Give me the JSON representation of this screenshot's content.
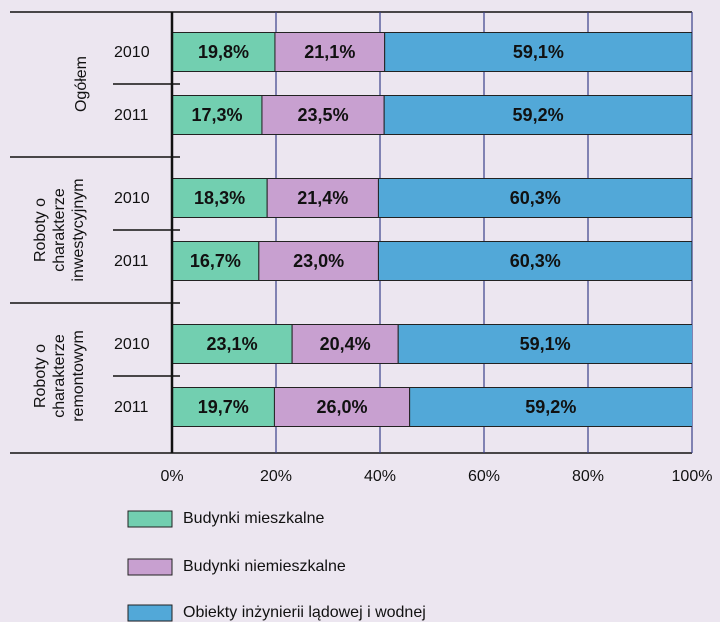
{
  "chart_data": {
    "type": "stacked-bar-horizontal",
    "groups": [
      "Ogółem",
      "Roboty o\ncharakterze\ninwestycyjnym",
      "Roboty o\ncharakterze\nremontowym"
    ],
    "categories": [
      "2010",
      "2011",
      "2010",
      "2011",
      "2010",
      "2011"
    ],
    "series": [
      {
        "name": "Budynki mieszkalne",
        "color": "#72cfb0",
        "values": [
          19.8,
          17.3,
          18.3,
          16.7,
          23.1,
          19.7
        ],
        "value_labels": [
          "19,8%",
          "17,3%",
          "18,3%",
          "16,7%",
          "23,1%",
          "19,7%"
        ]
      },
      {
        "name": "Budynki niemieszkalne",
        "color": "#c8a0d0",
        "values": [
          21.1,
          23.5,
          21.4,
          23.0,
          20.4,
          26.0
        ],
        "value_labels": [
          "21,1%",
          "23,5%",
          "21,4%",
          "23,0%",
          "20,4%",
          "26,0%"
        ]
      },
      {
        "name": "Obiekty inżynierii lądowej i wodnej",
        "color": "#52a8d8",
        "values": [
          59.1,
          59.2,
          60.3,
          60.3,
          59.1,
          59.2
        ],
        "value_labels": [
          "59,1%",
          "59,2%",
          "60,3%",
          "60,3%",
          "59,1%",
          "59,2%"
        ]
      }
    ],
    "xlim": [
      0,
      100
    ],
    "xticks": [
      {
        "value": 0,
        "label": "0%"
      },
      {
        "value": 20,
        "label": "20%"
      },
      {
        "value": 40,
        "label": "40%"
      },
      {
        "value": 60,
        "label": "60%"
      },
      {
        "value": 80,
        "label": "80%"
      },
      {
        "value": 100,
        "label": "100%"
      }
    ],
    "grid": true
  }
}
